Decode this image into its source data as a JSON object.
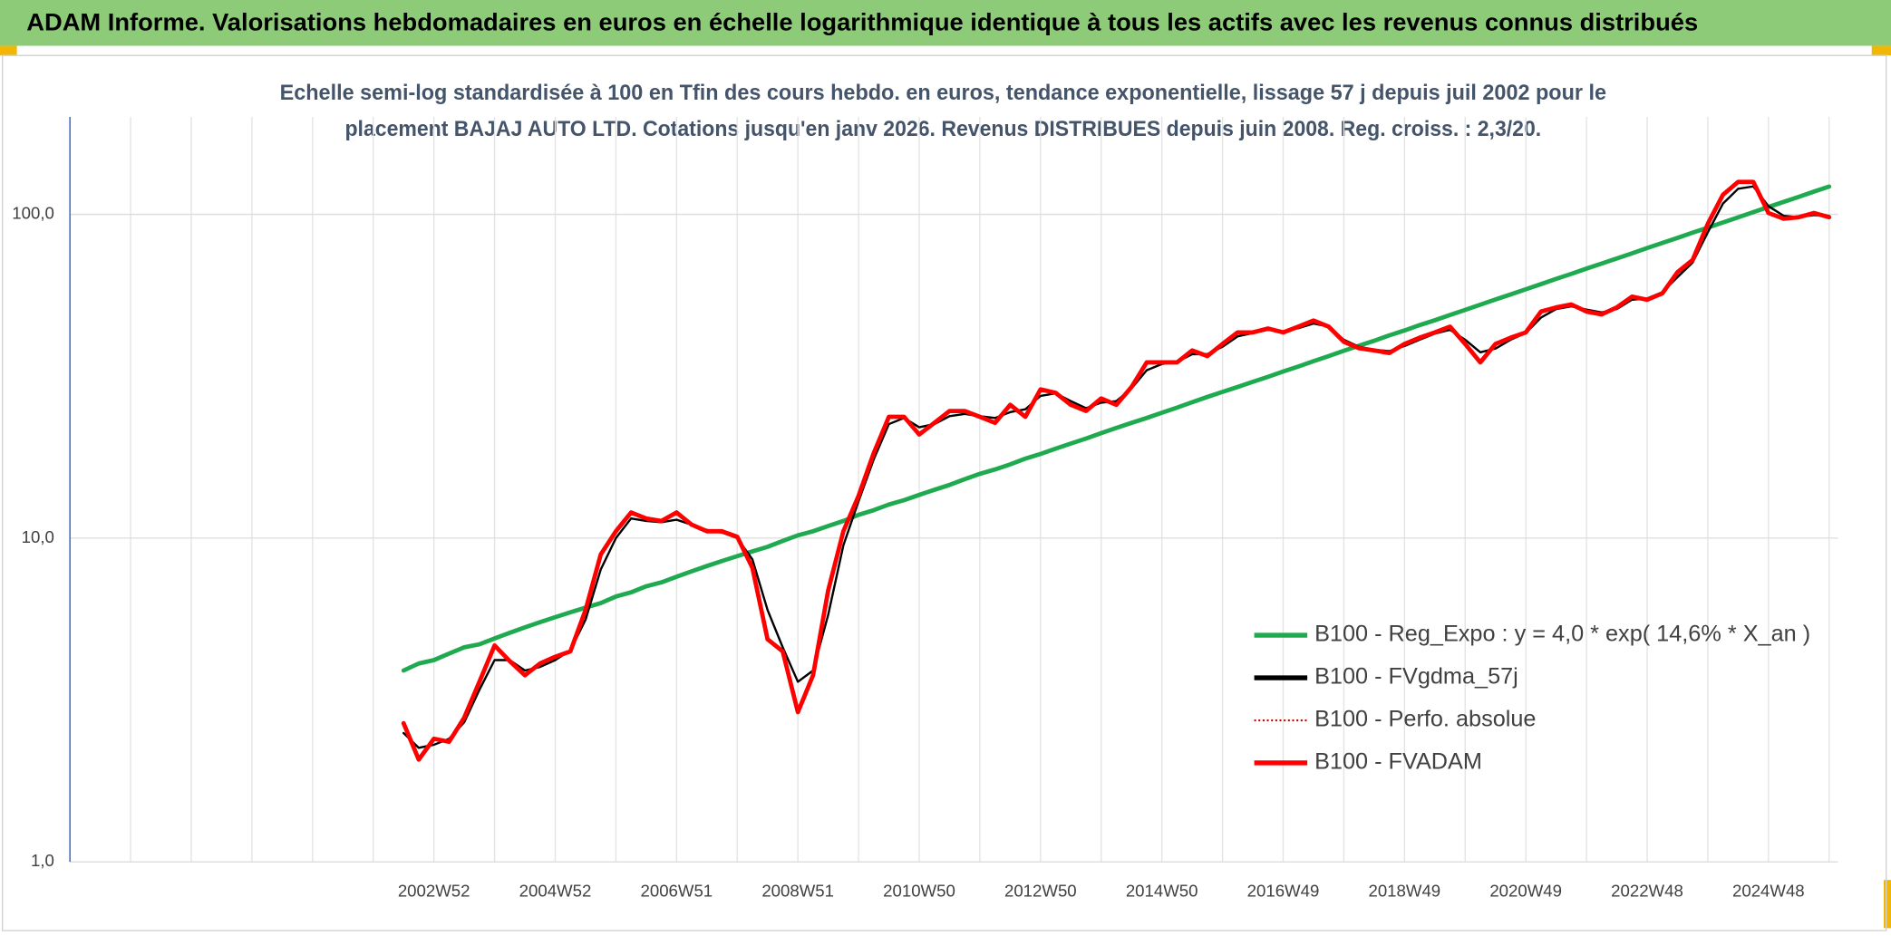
{
  "chart_data": {
    "type": "line",
    "title": "ADAM Informe. Valorisations hebdomadaires en euros en échelle logarithmique identique à tous les actifs avec les revenus connus distribués",
    "subtitle": [
      "Echelle semi-log standardisée à 100 en Tfin des cours hebdo. en euros, tendance exponentielle, lissage 57 j depuis juil 2002 pour le",
      "placement BAJAJ AUTO LTD. Cotations jusqu'en janv 2026. Revenus DISTRIBUES depuis juin 2008. Reg. croiss. : 2,3/20."
    ],
    "categories": [
      null,
      null,
      null,
      null,
      null,
      null,
      null,
      null,
      null,
      null,
      null,
      null,
      null,
      null,
      null,
      null,
      null,
      null,
      null,
      null,
      null,
      null,
      null,
      null,
      "2002W52",
      null,
      null,
      null,
      null,
      null,
      null,
      null,
      "2004W52",
      null,
      null,
      null,
      null,
      null,
      null,
      null,
      "2006W51",
      null,
      null,
      null,
      null,
      null,
      null,
      null,
      "2008W51",
      null,
      null,
      null,
      null,
      null,
      null,
      null,
      "2010W50",
      null,
      null,
      null,
      null,
      null,
      null,
      null,
      "2012W50",
      null,
      null,
      null,
      null,
      null,
      null,
      null,
      "2014W50",
      null,
      null,
      null,
      null,
      null,
      null,
      null,
      "2016W49",
      null,
      null,
      null,
      null,
      null,
      null,
      null,
      "2018W49",
      null,
      null,
      null,
      null,
      null,
      null,
      null,
      "2020W49",
      null,
      null,
      null,
      null,
      null,
      null,
      null,
      "2022W48",
      null,
      null,
      null,
      null,
      null,
      null,
      null,
      "2024W48",
      null,
      null,
      null,
      null
    ],
    "series": [
      {
        "name": "B100 - Reg_Expo : y = 4,0 * exp( 14,6% *  X_an )",
        "color": "#1faa50",
        "line_style": "solid",
        "values": [
          null,
          null,
          null,
          null,
          null,
          null,
          null,
          null,
          null,
          null,
          null,
          null,
          null,
          null,
          null,
          null,
          null,
          null,
          null,
          null,
          null,
          null,
          3.9,
          4.1,
          4.2,
          4.4,
          4.6,
          4.7,
          4.9,
          5.1,
          5.3,
          5.5,
          5.7,
          5.9,
          6.1,
          6.3,
          6.6,
          6.8,
          7.1,
          7.3,
          7.6,
          7.9,
          8.2,
          8.5,
          8.8,
          9.1,
          9.4,
          9.8,
          10.2,
          10.5,
          10.9,
          11.3,
          11.8,
          12.2,
          12.7,
          13.1,
          13.6,
          14.1,
          14.6,
          15.2,
          15.8,
          16.3,
          16.9,
          17.6,
          18.2,
          18.9,
          19.6,
          20.3,
          21.1,
          21.9,
          22.7,
          23.5,
          24.4,
          25.3,
          26.3,
          27.3,
          28.3,
          29.3,
          30.4,
          31.5,
          32.7,
          33.9,
          35.2,
          36.5,
          37.9,
          39.3,
          40.7,
          42.3,
          43.8,
          45.5,
          47.1,
          48.9,
          50.7,
          52.6,
          54.6,
          56.6,
          58.7,
          60.9,
          63.2,
          65.5,
          68.0,
          70.5,
          73.1,
          75.8,
          78.7,
          81.6,
          84.6,
          87.8,
          91.0,
          94.4,
          97.9,
          101.6,
          105.4,
          109.3,
          113.3,
          117.6,
          121.9
        ]
      },
      {
        "name": "B100 - FVgdma_57j",
        "color": "#000000",
        "line_style": "solid",
        "values": [
          null,
          null,
          null,
          null,
          null,
          null,
          null,
          null,
          null,
          null,
          null,
          null,
          null,
          null,
          null,
          null,
          null,
          null,
          null,
          null,
          null,
          null,
          2.5,
          2.25,
          2.3,
          2.4,
          2.7,
          3.4,
          4.2,
          4.2,
          3.9,
          4.0,
          4.2,
          4.5,
          5.6,
          8.0,
          10.0,
          11.5,
          11.3,
          11.2,
          11.4,
          11.0,
          10.6,
          10.4,
          10.0,
          8.6,
          6.0,
          4.6,
          3.6,
          3.9,
          5.8,
          9.5,
          13.0,
          17.5,
          22.5,
          23.5,
          22.0,
          22.5,
          23.8,
          24.2,
          23.8,
          23.5,
          24.5,
          25.0,
          27.5,
          28.0,
          26.5,
          25.2,
          26.2,
          26.5,
          29.0,
          33.0,
          34.5,
          35.0,
          37.0,
          37.0,
          39.0,
          42.0,
          43.0,
          44.0,
          43.5,
          44.5,
          46.0,
          45.0,
          41.0,
          39.0,
          38.2,
          37.8,
          39.2,
          41.0,
          42.8,
          44.0,
          41.0,
          37.5,
          38.5,
          41.0,
          43.0,
          48.0,
          51.0,
          52.0,
          50.8,
          49.8,
          51.0,
          54.5,
          55.0,
          57.5,
          64.0,
          71.0,
          88.0,
          108,
          120,
          122,
          106,
          99,
          98,
          99.5,
          99
        ]
      },
      {
        "name": "B100 - Perfo. absolue",
        "color": "#c00000",
        "line_style": "dotted",
        "values": [
          null,
          null,
          null,
          null,
          null,
          null,
          null,
          null,
          null,
          null,
          null,
          null,
          null,
          null,
          null,
          null,
          null,
          null,
          null,
          null,
          null,
          null,
          2.68,
          2.07,
          2.4,
          2.35,
          2.79,
          3.6,
          4.66,
          4.17,
          3.77,
          4.1,
          4.3,
          4.47,
          6.0,
          8.9,
          10.5,
          12.0,
          11.5,
          11.3,
          12.0,
          11.0,
          10.5,
          10.5,
          10.1,
          8.1,
          4.87,
          4.47,
          2.9,
          3.77,
          6.9,
          10.5,
          13.5,
          18.3,
          23.7,
          23.7,
          20.9,
          22.7,
          24.7,
          24.7,
          23.7,
          22.7,
          25.8,
          23.7,
          28.8,
          28.1,
          25.8,
          24.7,
          27.0,
          25.8,
          29.3,
          34.9,
          34.9,
          34.9,
          38.0,
          36.5,
          39.8,
          43.2,
          43.2,
          44.4,
          43.2,
          45.0,
          47.0,
          45.0,
          40.4,
          38.6,
          38.0,
          37.3,
          39.8,
          41.6,
          43.2,
          45.0,
          39.8,
          34.9,
          39.8,
          41.6,
          43.2,
          50.1,
          51.6,
          52.7,
          50.1,
          49.1,
          51.6,
          55.7,
          54.5,
          57.0,
          66.3,
          72.3,
          93.5,
          115,
          126,
          126,
          101,
          97,
          98,
          101,
          98
        ]
      },
      {
        "name": "B100 - FVADAM",
        "color": "#ff0000",
        "line_style": "solid",
        "values": [
          null,
          null,
          null,
          null,
          null,
          null,
          null,
          null,
          null,
          null,
          null,
          null,
          null,
          null,
          null,
          null,
          null,
          null,
          null,
          null,
          null,
          null,
          2.68,
          2.07,
          2.4,
          2.35,
          2.79,
          3.6,
          4.66,
          4.17,
          3.77,
          4.1,
          4.3,
          4.47,
          6.0,
          8.9,
          10.5,
          12.0,
          11.5,
          11.3,
          12.0,
          11.0,
          10.5,
          10.5,
          10.1,
          8.1,
          4.87,
          4.47,
          2.9,
          3.77,
          6.9,
          10.5,
          13.5,
          18.3,
          23.7,
          23.7,
          20.9,
          22.7,
          24.7,
          24.7,
          23.7,
          22.7,
          25.8,
          23.7,
          28.8,
          28.1,
          25.8,
          24.7,
          27.0,
          25.8,
          29.3,
          34.9,
          34.9,
          34.9,
          38.0,
          36.5,
          39.8,
          43.2,
          43.2,
          44.4,
          43.2,
          45.0,
          47.0,
          45.0,
          40.4,
          38.6,
          38.0,
          37.3,
          39.8,
          41.6,
          43.2,
          45.0,
          39.8,
          34.9,
          39.8,
          41.6,
          43.2,
          50.1,
          51.6,
          52.7,
          50.1,
          49.1,
          51.6,
          55.7,
          54.5,
          57.0,
          66.3,
          72.3,
          93.5,
          115,
          126,
          126,
          101,
          97,
          98,
          101,
          98
        ]
      }
    ],
    "log_scale": true,
    "ylim": [
      1,
      200
    ],
    "yticks": [
      {
        "value": 1,
        "label": "1,0"
      },
      {
        "value": 10,
        "label": "10,0"
      },
      {
        "value": 100,
        "label": "100,0"
      }
    ],
    "grid": true,
    "legend": "lower right"
  }
}
